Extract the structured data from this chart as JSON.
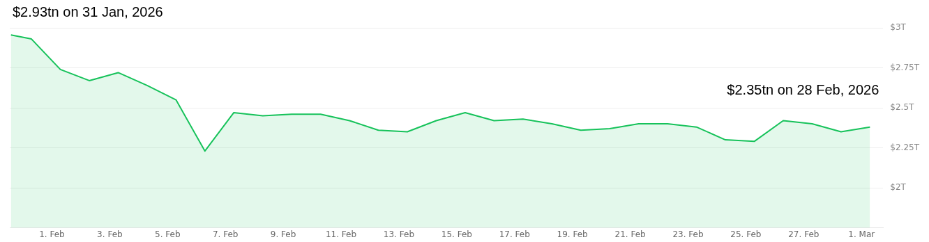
{
  "chart_data": {
    "type": "area",
    "annotations": [
      "$2.93tn on 31 Jan, 2026",
      "$2.35tn on 28 Feb, 2026"
    ],
    "series": [
      {
        "color": "#16c25a",
        "x": [
          "2026-01-30T14:00",
          "2026-01-31T07:00",
          "2026-02-01T07:00",
          "2026-02-02T07:00",
          "2026-02-03T07:00",
          "2026-02-04T07:00",
          "2026-02-05T07:00",
          "2026-02-06T07:00",
          "2026-02-07T07:00",
          "2026-02-08T07:00",
          "2026-02-09T07:00",
          "2026-02-10T07:00",
          "2026-02-11T07:00",
          "2026-02-12T07:00",
          "2026-02-13T07:00",
          "2026-02-14T07:00",
          "2026-02-15T07:00",
          "2026-02-16T07:00",
          "2026-02-17T07:00",
          "2026-02-18T07:00",
          "2026-02-19T07:00",
          "2026-02-20T07:00",
          "2026-02-21T07:00",
          "2026-02-22T07:00",
          "2026-02-23T07:00",
          "2026-02-24T07:00",
          "2026-02-25T07:00",
          "2026-02-26T07:00",
          "2026-02-27T07:00",
          "2026-02-28T07:00",
          "2026-03-01T07:00"
        ],
        "values": [
          2.955,
          2.93,
          2.74,
          2.67,
          2.72,
          2.64,
          2.55,
          2.23,
          2.47,
          2.45,
          2.46,
          2.46,
          2.42,
          2.36,
          2.35,
          2.42,
          2.47,
          2.42,
          2.43,
          2.4,
          2.36,
          2.37,
          2.4,
          2.4,
          2.38,
          2.3,
          2.29,
          2.42,
          2.4,
          2.35,
          2.38
        ]
      }
    ],
    "xlim": [
      "2026-01-30T13:00",
      "2026-03-01T18:00"
    ],
    "xticks": [
      {
        "value": "2026-02-01",
        "label": "1. Feb"
      },
      {
        "value": "2026-02-03",
        "label": "3. Feb"
      },
      {
        "value": "2026-02-05",
        "label": "5. Feb"
      },
      {
        "value": "2026-02-07",
        "label": "7. Feb"
      },
      {
        "value": "2026-02-09",
        "label": "9. Feb"
      },
      {
        "value": "2026-02-11",
        "label": "11. Feb"
      },
      {
        "value": "2026-02-13",
        "label": "13. Feb"
      },
      {
        "value": "2026-02-15",
        "label": "15. Feb"
      },
      {
        "value": "2026-02-17",
        "label": "17. Feb"
      },
      {
        "value": "2026-02-19",
        "label": "19. Feb"
      },
      {
        "value": "2026-02-21",
        "label": "21. Feb"
      },
      {
        "value": "2026-02-23",
        "label": "23. Feb"
      },
      {
        "value": "2026-02-25",
        "label": "25. Feb"
      },
      {
        "value": "2026-02-27",
        "label": "27. Feb"
      },
      {
        "value": "2026-03-01",
        "label": "1. Mar"
      }
    ],
    "ylim": [
      1.75,
      3
    ],
    "yticks": [
      {
        "value": 2,
        "label": "$2T"
      },
      {
        "value": 2.25,
        "label": "$2.25T"
      },
      {
        "value": 2.5,
        "label": "$2.5T"
      },
      {
        "value": 2.75,
        "label": "$2.75T"
      },
      {
        "value": 3,
        "label": "$3T"
      }
    ],
    "grid": "y",
    "legend": false,
    "marker": "none",
    "line_style": "solid"
  }
}
